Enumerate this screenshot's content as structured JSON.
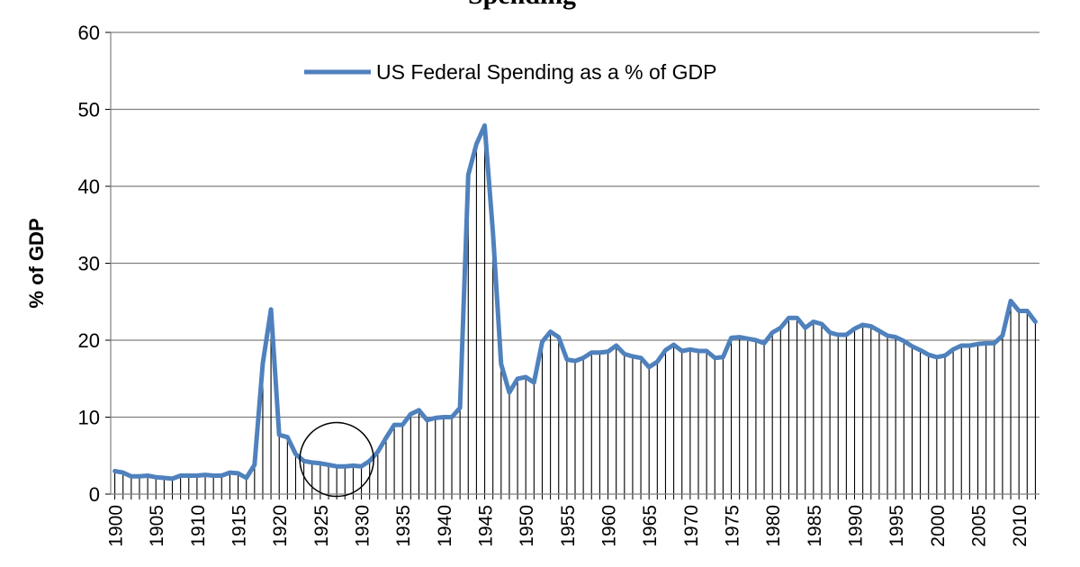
{
  "chart_data": {
    "type": "line",
    "title": "Spending",
    "xlabel": "",
    "ylabel": "% of GDP",
    "ylim": [
      0,
      60
    ],
    "yticks": [
      0,
      10,
      20,
      30,
      40,
      50,
      60
    ],
    "xlim": [
      1900,
      2012
    ],
    "xticks": [
      1900,
      1905,
      1910,
      1915,
      1920,
      1925,
      1930,
      1935,
      1940,
      1945,
      1950,
      1955,
      1960,
      1965,
      1970,
      1975,
      1980,
      1985,
      1990,
      1995,
      2000,
      2005,
      2010
    ],
    "grid": "horizontal",
    "legend_position": "top-center",
    "annotation": "circle around 1925-1930",
    "annotation_center": [
      1927,
      4.5
    ],
    "drop_lines": true,
    "colors": {
      "line": "#4F81BD",
      "drop_line": "#000000",
      "grid": "#808080"
    },
    "series": [
      {
        "name": "US Federal Spending as a % of GDP",
        "x": [
          1900,
          1901,
          1902,
          1903,
          1904,
          1905,
          1906,
          1907,
          1908,
          1909,
          1910,
          1911,
          1912,
          1913,
          1914,
          1915,
          1916,
          1917,
          1918,
          1919,
          1920,
          1921,
          1922,
          1923,
          1924,
          1925,
          1926,
          1927,
          1928,
          1929,
          1930,
          1931,
          1932,
          1933,
          1934,
          1935,
          1936,
          1937,
          1938,
          1939,
          1940,
          1941,
          1942,
          1943,
          1944,
          1945,
          1946,
          1947,
          1948,
          1949,
          1950,
          1951,
          1952,
          1953,
          1954,
          1955,
          1956,
          1957,
          1958,
          1959,
          1960,
          1961,
          1962,
          1963,
          1964,
          1965,
          1966,
          1967,
          1968,
          1969,
          1970,
          1971,
          1972,
          1973,
          1974,
          1975,
          1976,
          1977,
          1978,
          1979,
          1980,
          1981,
          1982,
          1983,
          1984,
          1985,
          1986,
          1987,
          1988,
          1989,
          1990,
          1991,
          1992,
          1993,
          1994,
          1995,
          1996,
          1997,
          1998,
          1999,
          2000,
          2001,
          2002,
          2003,
          2004,
          2005,
          2006,
          2007,
          2008,
          2009,
          2010,
          2011,
          2012
        ],
        "values": [
          3.0,
          2.8,
          2.3,
          2.3,
          2.4,
          2.2,
          2.1,
          2.0,
          2.4,
          2.4,
          2.4,
          2.5,
          2.4,
          2.4,
          2.8,
          2.7,
          2.1,
          3.8,
          17.0,
          24.0,
          7.7,
          7.4,
          5.2,
          4.3,
          4.1,
          4.0,
          3.8,
          3.6,
          3.6,
          3.7,
          3.6,
          4.3,
          5.5,
          7.3,
          9.0,
          9.0,
          10.4,
          10.9,
          9.6,
          9.9,
          10.0,
          10.0,
          11.2,
          41.5,
          45.5,
          47.9,
          34.0,
          16.9,
          13.2,
          15.0,
          15.2,
          14.5,
          19.8,
          21.1,
          20.4,
          17.5,
          17.3,
          17.7,
          18.4,
          18.4,
          18.5,
          19.3,
          18.2,
          17.9,
          17.7,
          16.5,
          17.2,
          18.7,
          19.4,
          18.6,
          18.8,
          18.6,
          18.6,
          17.7,
          17.8,
          20.3,
          20.4,
          20.2,
          20.0,
          19.6,
          21.0,
          21.6,
          22.9,
          22.9,
          21.6,
          22.4,
          22.1,
          21.0,
          20.7,
          20.7,
          21.5,
          22.0,
          21.8,
          21.2,
          20.6,
          20.4,
          19.9,
          19.2,
          18.7,
          18.1,
          17.8,
          18.0,
          18.8,
          19.3,
          19.3,
          19.5,
          19.6,
          19.6,
          20.6,
          25.1,
          23.8,
          23.8,
          22.4
        ]
      }
    ]
  }
}
